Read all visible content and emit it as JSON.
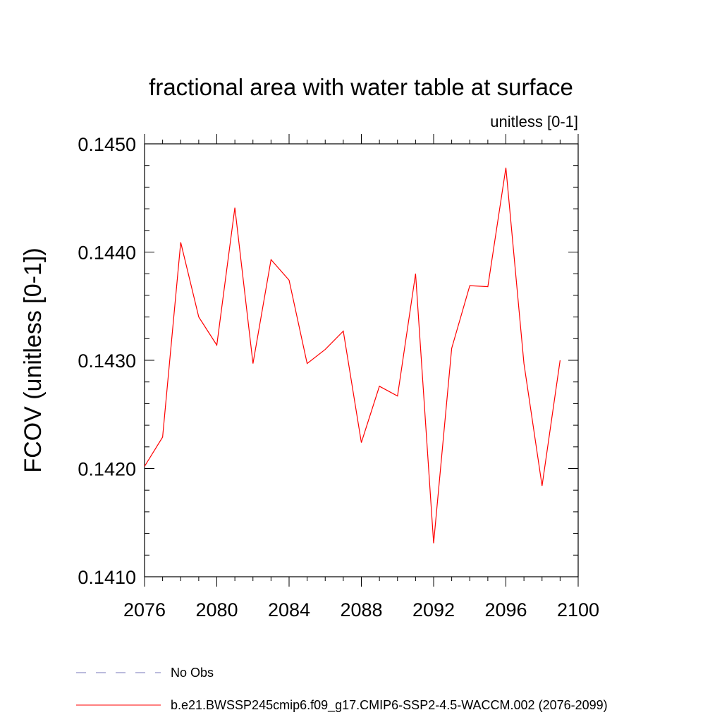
{
  "chart_data": {
    "type": "line",
    "title": "fractional area with water table at surface",
    "subtitle": "unitless [0-1]",
    "xlabel": "",
    "ylabel": "FCOV  (unitless [0-1])",
    "xlim": [
      2076,
      2100
    ],
    "ylim": [
      0.141,
      0.145
    ],
    "xticks": [
      2076,
      2080,
      2084,
      2088,
      2092,
      2096,
      2100
    ],
    "xtick_labels": [
      "2076",
      "2080",
      "2084",
      "2088",
      "2092",
      "2096",
      "2100"
    ],
    "yticks": [
      0.141,
      0.142,
      0.143,
      0.144,
      0.145
    ],
    "ytick_labels": [
      "0.1410",
      "0.1420",
      "0.1430",
      "0.1440",
      "0.1450"
    ],
    "grid": false,
    "series": [
      {
        "name": "b.e21.BWSSP245cmip6.f09_g17.CMIP6-SSP2-4.5-WACCM.002 (2076-2099)",
        "color": "#ff0000",
        "dash": "solid",
        "x": [
          2076,
          2077,
          2078,
          2079,
          2080,
          2081,
          2082,
          2083,
          2084,
          2085,
          2086,
          2087,
          2088,
          2089,
          2090,
          2091,
          2092,
          2093,
          2094,
          2095,
          2096,
          2097,
          2098,
          2099
        ],
        "values": [
          0.14202,
          0.14229,
          0.14409,
          0.1434,
          0.14314,
          0.14441,
          0.14297,
          0.14393,
          0.14374,
          0.14297,
          0.1431,
          0.14327,
          0.14224,
          0.14276,
          0.14267,
          0.1438,
          0.14131,
          0.14311,
          0.14369,
          0.14368,
          0.14478,
          0.14297,
          0.14184,
          0.143
        ]
      }
    ],
    "legend": {
      "placement": "bottom",
      "entries": [
        {
          "label": "No Obs",
          "color": "#7777bb",
          "dash": "dashed"
        },
        {
          "label": "b.e21.BWSSP245cmip6.f09_g17.CMIP6-SSP2-4.5-WACCM.002 (2076-2099)",
          "color": "#ff0000",
          "dash": "solid"
        }
      ]
    }
  }
}
